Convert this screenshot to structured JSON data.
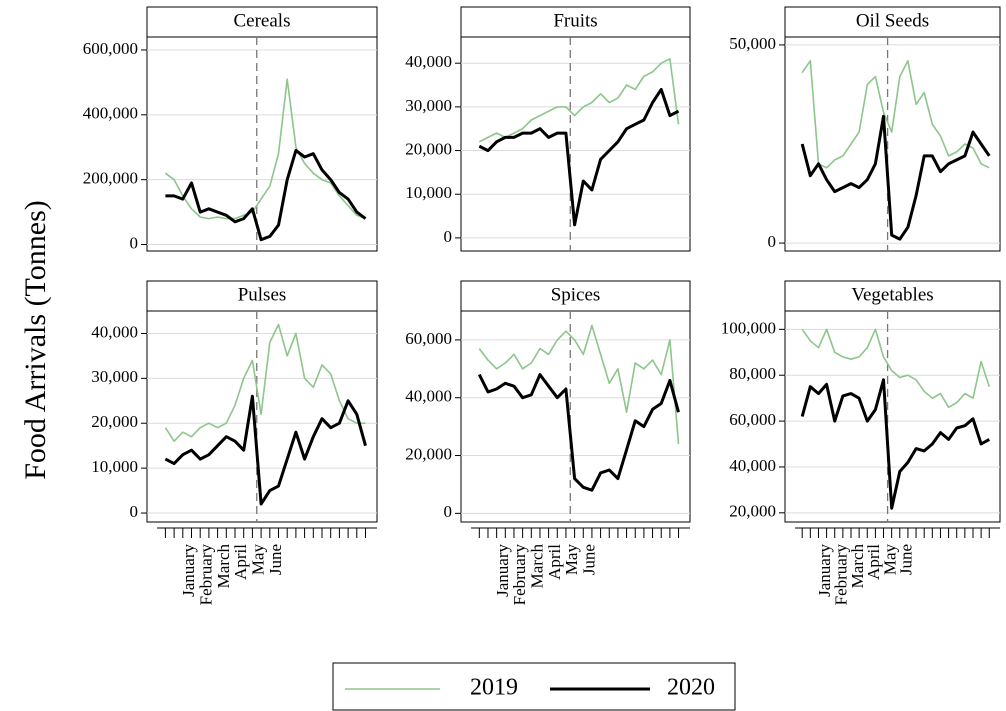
{
  "y_label": "Food Arrivals (Tonnes)",
  "chart_data": [
    {
      "type": "line",
      "title": "Cereals",
      "categories": [
        null,
        null,
        null,
        null,
        null,
        null,
        null,
        null,
        null,
        null,
        null,
        null,
        null,
        null,
        null,
        null,
        null,
        null,
        null,
        null,
        null,
        null,
        null,
        null
      ],
      "ylim": [
        -20000,
        640000
      ],
      "yticks": [
        0,
        {
          "value": 200000,
          "label": "200,000"
        },
        {
          "value": 400000,
          "label": "400,000"
        },
        {
          "value": 600000,
          "label": "600,000"
        }
      ],
      "grid": true,
      "series": [
        {
          "name": "2019",
          "color": "#8cc68a",
          "values": [
            220000,
            200000,
            150000,
            110000,
            85000,
            80000,
            85000,
            80000,
            80000,
            90000,
            100000,
            140000,
            180000,
            280000,
            510000,
            300000,
            250000,
            220000,
            200000,
            190000,
            150000,
            120000,
            90000,
            80000
          ]
        },
        {
          "name": "2020",
          "color": "#000000",
          "values": [
            150000,
            150000,
            140000,
            190000,
            100000,
            110000,
            100000,
            90000,
            70000,
            80000,
            110000,
            15000,
            25000,
            60000,
            200000,
            290000,
            270000,
            280000,
            230000,
            200000,
            160000,
            140000,
            100000,
            80000
          ]
        }
      ]
    },
    {
      "type": "line",
      "title": "Fruits",
      "categories": [
        null,
        null,
        null,
        null,
        null,
        null,
        null,
        null,
        null,
        null,
        null,
        null,
        null,
        null,
        null,
        null,
        null,
        null,
        null,
        null,
        null,
        null,
        null,
        null
      ],
      "ylim": [
        -3000,
        46000
      ],
      "yticks": [
        0,
        {
          "value": 10000,
          "label": "10,000"
        },
        {
          "value": 20000,
          "label": "20,000"
        },
        {
          "value": 30000,
          "label": "30,000"
        },
        {
          "value": 40000,
          "label": "40,000"
        }
      ],
      "grid": true,
      "series": [
        {
          "name": "2019",
          "color": "#8cc68a",
          "values": [
            22000,
            23000,
            24000,
            23000,
            24000,
            25000,
            27000,
            28000,
            29000,
            30000,
            30000,
            28000,
            30000,
            31000,
            33000,
            31000,
            32000,
            35000,
            34000,
            37000,
            38000,
            40000,
            41000,
            26000
          ]
        },
        {
          "name": "2020",
          "color": "#000000",
          "values": [
            21000,
            20000,
            22000,
            23000,
            23000,
            24000,
            24000,
            25000,
            23000,
            24000,
            24000,
            3000,
            13000,
            11000,
            18000,
            20000,
            22000,
            25000,
            26000,
            27000,
            31000,
            34000,
            28000,
            29000
          ]
        }
      ]
    },
    {
      "type": "line",
      "title": "Oil Seeds",
      "categories": [
        null,
        null,
        null,
        null,
        null,
        null,
        null,
        null,
        null,
        null,
        null,
        null,
        null,
        null,
        null,
        null,
        null,
        null,
        null,
        null,
        null,
        null,
        null,
        null
      ],
      "ylim": [
        -2000,
        52000
      ],
      "yticks": [
        0,
        {
          "value": 50000,
          "label": "50,000"
        }
      ],
      "grid": true,
      "series": [
        {
          "name": "2019",
          "color": "#8cc68a",
          "values": [
            43000,
            46000,
            20000,
            19000,
            21000,
            22000,
            25000,
            28000,
            40000,
            42000,
            33000,
            28000,
            42000,
            46000,
            35000,
            38000,
            30000,
            27000,
            22000,
            23000,
            25000,
            24000,
            20000,
            19000
          ]
        },
        {
          "name": "2020",
          "color": "#000000",
          "values": [
            25000,
            17000,
            20000,
            16000,
            13000,
            14000,
            15000,
            14000,
            16000,
            20000,
            32000,
            2000,
            1000,
            4000,
            12000,
            22000,
            22000,
            18000,
            20000,
            21000,
            22000,
            28000,
            25000,
            22000
          ]
        }
      ]
    },
    {
      "type": "line",
      "title": "Pulses",
      "categories": [
        null,
        "January",
        null,
        "February",
        null,
        "March",
        null,
        "April",
        null,
        "May",
        null,
        "June",
        null,
        null,
        null,
        null,
        null,
        null,
        null,
        null,
        null,
        null,
        null,
        null
      ],
      "ylim": [
        -2000,
        45000
      ],
      "yticks": [
        0,
        {
          "value": 10000,
          "label": "10,000"
        },
        {
          "value": 20000,
          "label": "20,000"
        },
        {
          "value": 30000,
          "label": "30,000"
        },
        {
          "value": 40000,
          "label": "40,000"
        }
      ],
      "grid": true,
      "series": [
        {
          "name": "2019",
          "color": "#8cc68a",
          "values": [
            19000,
            16000,
            18000,
            17000,
            19000,
            20000,
            19000,
            20000,
            24000,
            30000,
            34000,
            22000,
            38000,
            42000,
            35000,
            40000,
            30000,
            28000,
            33000,
            31000,
            25000,
            21000,
            20000,
            20000
          ]
        },
        {
          "name": "2020",
          "color": "#000000",
          "values": [
            12000,
            11000,
            13000,
            14000,
            12000,
            13000,
            15000,
            17000,
            16000,
            14000,
            26000,
            2000,
            5000,
            6000,
            12000,
            18000,
            12000,
            17000,
            21000,
            19000,
            20000,
            25000,
            22000,
            15000
          ]
        }
      ]
    },
    {
      "type": "line",
      "title": "Spices",
      "categories": [
        null,
        "January",
        null,
        "February",
        null,
        "March",
        null,
        "April",
        null,
        "May",
        null,
        "June",
        null,
        null,
        null,
        null,
        null,
        null,
        null,
        null,
        null,
        null,
        null,
        null
      ],
      "ylim": [
        -3000,
        70000
      ],
      "yticks": [
        0,
        {
          "value": 20000,
          "label": "20,000"
        },
        {
          "value": 40000,
          "label": "40,000"
        },
        {
          "value": 60000,
          "label": "60,000"
        }
      ],
      "grid": true,
      "series": [
        {
          "name": "2019",
          "color": "#8cc68a",
          "values": [
            57000,
            53000,
            50000,
            52000,
            55000,
            50000,
            52000,
            57000,
            55000,
            60000,
            63000,
            60000,
            55000,
            65000,
            55000,
            45000,
            50000,
            35000,
            52000,
            50000,
            53000,
            48000,
            60000,
            24000
          ]
        },
        {
          "name": "2020",
          "color": "#000000",
          "values": [
            48000,
            42000,
            43000,
            45000,
            44000,
            40000,
            41000,
            48000,
            44000,
            40000,
            43000,
            12000,
            9000,
            8000,
            14000,
            15000,
            12000,
            22000,
            32000,
            30000,
            36000,
            38000,
            46000,
            35000
          ]
        }
      ]
    },
    {
      "type": "line",
      "title": "Vegetables",
      "categories": [
        null,
        "January",
        null,
        "February",
        null,
        "March",
        null,
        "April",
        null,
        "May",
        null,
        "June",
        null,
        null,
        null,
        null,
        null,
        null,
        null,
        null,
        null,
        null,
        null,
        null
      ],
      "ylim": [
        16000,
        108000
      ],
      "yticks": [
        {
          "value": 20000,
          "label": "20,000"
        },
        {
          "value": 40000,
          "label": "40,000"
        },
        {
          "value": 60000,
          "label": "60,000"
        },
        {
          "value": 80000,
          "label": "80,000"
        },
        {
          "value": 100000,
          "label": "100,000"
        }
      ],
      "grid": true,
      "series": [
        {
          "name": "2019",
          "color": "#8cc68a",
          "values": [
            100000,
            95000,
            92000,
            100000,
            90000,
            88000,
            87000,
            88000,
            92000,
            100000,
            88000,
            82000,
            79000,
            80000,
            78000,
            73000,
            70000,
            72000,
            66000,
            68000,
            72000,
            70000,
            86000,
            75000
          ]
        },
        {
          "name": "2020",
          "color": "#000000",
          "values": [
            62000,
            75000,
            72000,
            76000,
            60000,
            71000,
            72000,
            70000,
            60000,
            65000,
            78000,
            22000,
            38000,
            42000,
            48000,
            47000,
            50000,
            55000,
            52000,
            57000,
            58000,
            61000,
            50000,
            52000
          ]
        }
      ]
    }
  ]
}
